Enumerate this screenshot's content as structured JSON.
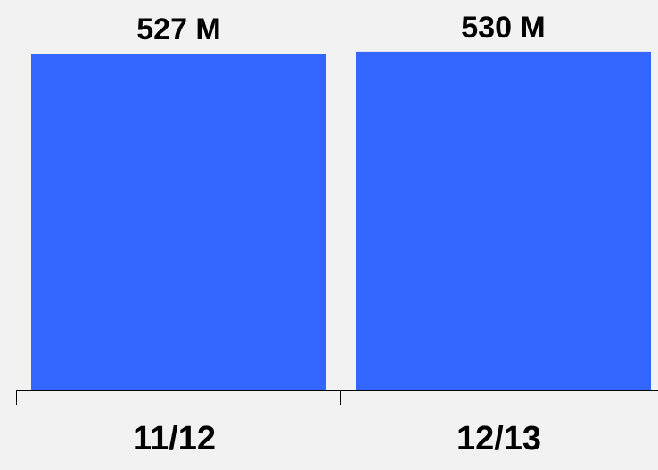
{
  "chart_data": {
    "type": "bar",
    "categories": [
      "11/12",
      "12/13"
    ],
    "values": [
      527,
      530
    ],
    "value_labels": [
      "527 M",
      "530 M"
    ],
    "ylim": [
      0,
      555
    ],
    "grid": false,
    "legend": "none",
    "title": "",
    "xlabel": "",
    "ylabel": ""
  },
  "colors": {
    "background": "#f2f2f2",
    "bar": "#3366ff",
    "axis": "#000000",
    "text": "#000000"
  }
}
